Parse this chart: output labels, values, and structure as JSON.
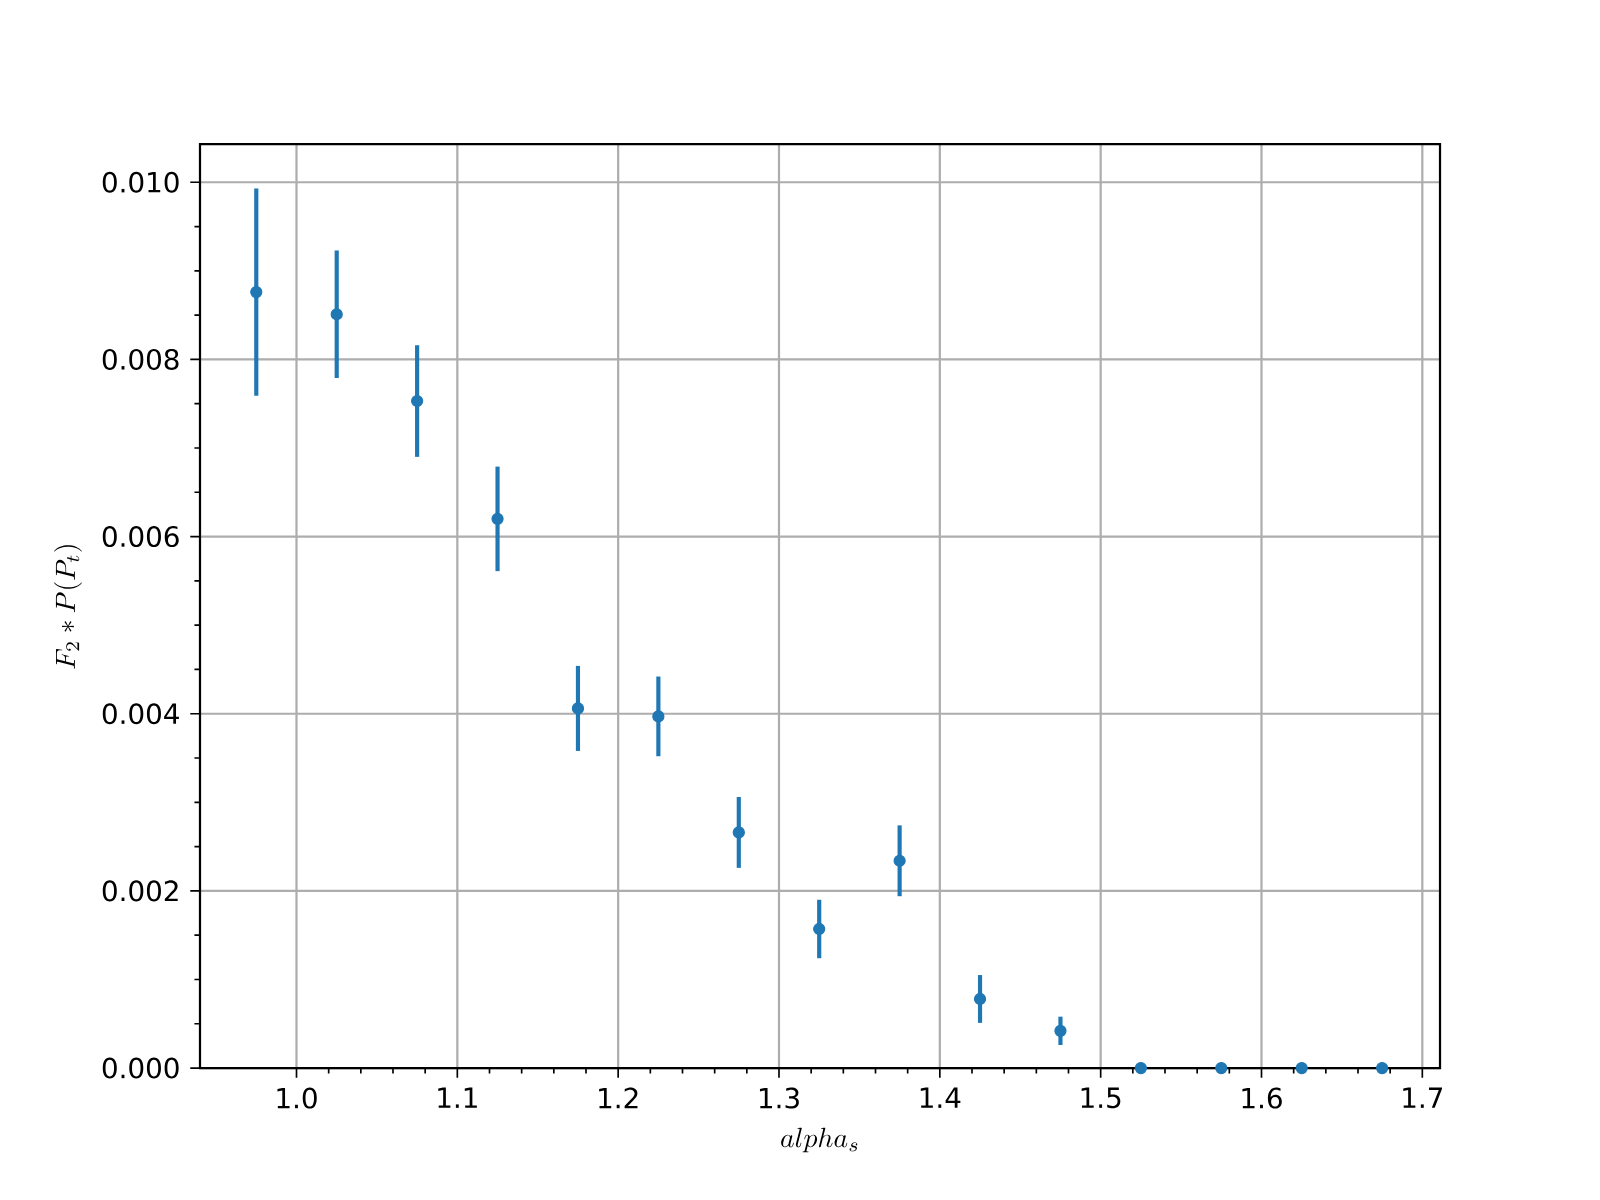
{
  "chart_data": {
    "type": "scatter",
    "xlabel": "alpha_s",
    "ylabel": "F_2 * P(P_t)",
    "x": [
      0.975,
      1.025,
      1.075,
      1.125,
      1.175,
      1.225,
      1.275,
      1.325,
      1.375,
      1.425,
      1.475,
      1.525,
      1.575,
      1.625,
      1.675
    ],
    "values": [
      0.00876,
      0.00851,
      0.00753,
      0.0062,
      0.00406,
      0.00397,
      0.00266,
      0.00157,
      0.00234,
      0.00078,
      0.00042,
      0,
      0,
      0,
      0
    ],
    "errors": [
      0.00117,
      0.00072,
      0.00063,
      0.00059,
      0.00048,
      0.00045,
      0.0004,
      0.00033,
      0.0004,
      0.00027,
      0.00016,
      null,
      null,
      null,
      null
    ],
    "color": "#1f77b4",
    "marker": "circle",
    "grid": true,
    "xlim": [
      0.94,
      1.711
    ],
    "ylim": [
      0,
      0.01043
    ],
    "xticks": [
      {
        "value": 1.0,
        "label": "1.0"
      },
      {
        "value": 1.1,
        "label": "1.1"
      },
      {
        "value": 1.2,
        "label": "1.2"
      },
      {
        "value": 1.3,
        "label": "1.3"
      },
      {
        "value": 1.4,
        "label": "1.4"
      },
      {
        "value": 1.5,
        "label": "1.5"
      },
      {
        "value": 1.6,
        "label": "1.6"
      },
      {
        "value": 1.7,
        "label": "1.7"
      }
    ],
    "yticks": [
      {
        "value": 0,
        "label": "0.000"
      },
      {
        "value": 0.002,
        "label": "0.002"
      },
      {
        "value": 0.004,
        "label": "0.004"
      },
      {
        "value": 0.006,
        "label": "0.006"
      },
      {
        "value": 0.008,
        "label": "0.008"
      },
      {
        "value": 0.01,
        "label": "0.010"
      }
    ]
  }
}
